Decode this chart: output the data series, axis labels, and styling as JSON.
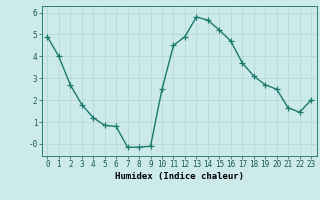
{
  "x": [
    0,
    1,
    2,
    3,
    4,
    5,
    6,
    7,
    8,
    9,
    10,
    11,
    12,
    13,
    14,
    15,
    16,
    17,
    18,
    19,
    20,
    21,
    22,
    23
  ],
  "y": [
    4.9,
    4.0,
    2.7,
    1.8,
    1.2,
    0.85,
    0.8,
    -0.15,
    -0.15,
    -0.1,
    2.5,
    4.5,
    4.9,
    5.8,
    5.65,
    5.2,
    4.7,
    3.7,
    3.1,
    2.7,
    2.5,
    1.65,
    1.45,
    2.0
  ],
  "line_color": "#1a7a6e",
  "marker": "+",
  "marker_size": 4,
  "bg_color": "#cdeaea",
  "grid_color": "#b8d8d8",
  "xlabel": "Humidex (Indice chaleur)",
  "xlim": [
    -0.5,
    23.5
  ],
  "ylim": [
    -0.55,
    6.3
  ],
  "yticks": [
    0,
    1,
    2,
    3,
    4,
    5,
    6
  ],
  "ytick_labels": [
    "-0",
    "1",
    "2",
    "3",
    "4",
    "5",
    "6"
  ],
  "xticks": [
    0,
    1,
    2,
    3,
    4,
    5,
    6,
    7,
    8,
    9,
    10,
    11,
    12,
    13,
    14,
    15,
    16,
    17,
    18,
    19,
    20,
    21,
    22,
    23
  ],
  "xlabel_fontsize": 6.5,
  "tick_fontsize": 5.5,
  "line_width": 1.0
}
